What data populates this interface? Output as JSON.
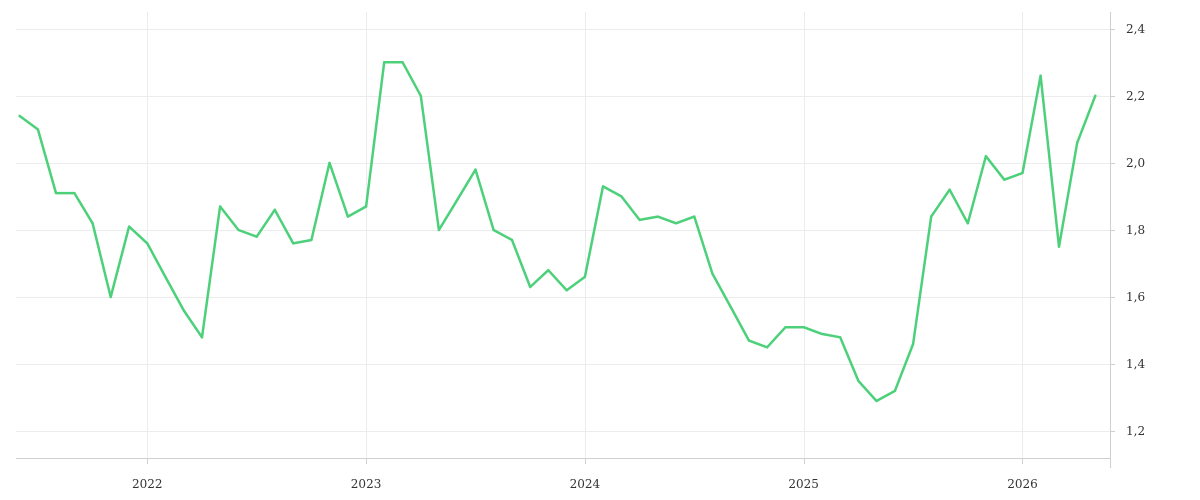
{
  "chart_data": {
    "type": "line",
    "title": "",
    "xlabel": "",
    "ylabel": "",
    "x_tick_labels": [
      "2022",
      "2023",
      "2024",
      "2025",
      "2026"
    ],
    "x_tick_values": [
      2022.0,
      2023.0,
      2024.0,
      2025.0,
      2026.0
    ],
    "y_tick_labels": [
      "1,2",
      "1,4",
      "1,6",
      "1,8",
      "2,0",
      "2,2",
      "2,4"
    ],
    "y_tick_values": [
      1.2,
      1.4,
      1.6,
      1.8,
      2.0,
      2.2,
      2.4
    ],
    "xlim": [
      2021.4,
      2026.4
    ],
    "ylim": [
      1.12,
      2.45
    ],
    "grid": true,
    "y_axis_position": "right",
    "legend": "none",
    "series": [
      {
        "color": "#4cd07a",
        "x": [
          2021.417,
          2021.5,
          2021.583,
          2021.667,
          2021.75,
          2021.833,
          2021.917,
          2022.0,
          2022.083,
          2022.167,
          2022.25,
          2022.333,
          2022.417,
          2022.5,
          2022.583,
          2022.667,
          2022.75,
          2022.833,
          2022.917,
          2023.0,
          2023.083,
          2023.167,
          2023.25,
          2023.333,
          2023.417,
          2023.5,
          2023.583,
          2023.667,
          2023.75,
          2023.833,
          2023.917,
          2024.0,
          2024.083,
          2024.167,
          2024.25,
          2024.333,
          2024.417,
          2024.5,
          2024.583,
          2024.667,
          2024.75,
          2024.833,
          2024.917,
          2025.0,
          2025.083,
          2025.167,
          2025.25,
          2025.333,
          2025.417,
          2025.5,
          2025.583,
          2025.667,
          2025.75,
          2025.833,
          2025.917,
          2026.0,
          2026.083,
          2026.167,
          2026.25,
          2026.333
        ],
        "y": [
          2.14,
          2.1,
          1.91,
          1.91,
          1.82,
          1.6,
          1.81,
          1.76,
          1.66,
          1.56,
          1.48,
          1.87,
          1.8,
          1.78,
          1.86,
          1.76,
          1.77,
          2.0,
          1.84,
          1.87,
          2.3,
          2.3,
          2.2,
          1.8,
          1.89,
          1.98,
          1.8,
          1.77,
          1.63,
          1.68,
          1.62,
          1.66,
          1.93,
          1.9,
          1.83,
          1.84,
          1.82,
          1.84,
          1.67,
          1.57,
          1.47,
          1.45,
          1.51,
          1.51,
          1.49,
          1.48,
          1.35,
          1.29,
          1.32,
          1.46,
          1.84,
          1.92,
          1.82,
          2.02,
          1.95,
          1.97,
          2.26,
          1.75,
          2.06,
          2.2
        ]
      }
    ]
  }
}
